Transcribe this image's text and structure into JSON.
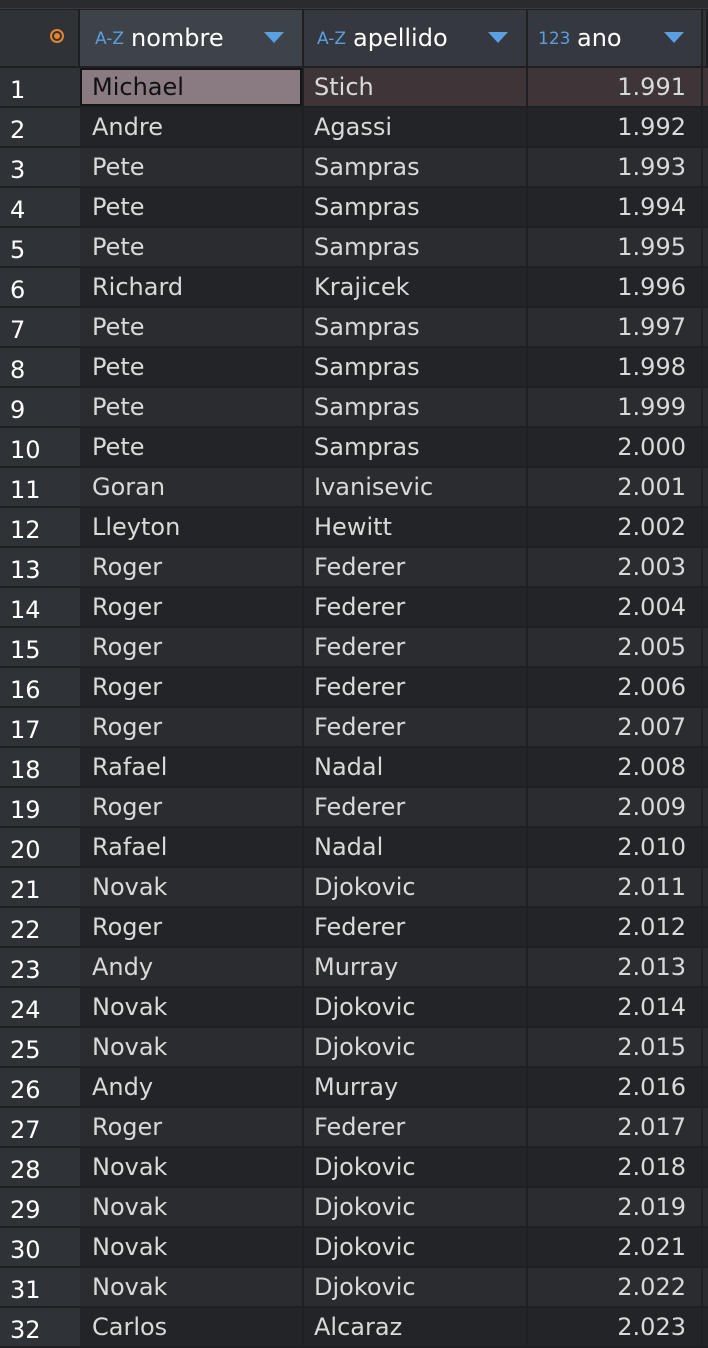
{
  "header": {
    "columns": [
      {
        "type_icon": "A-Z",
        "label": "nombre"
      },
      {
        "type_icon": "A-Z",
        "label": "apellido"
      },
      {
        "type_icon": "123",
        "label": "ano"
      }
    ]
  },
  "rows": [
    {
      "n": "1",
      "nombre": "Michael",
      "apellido": "Stich",
      "ano": "1.991"
    },
    {
      "n": "2",
      "nombre": "Andre",
      "apellido": "Agassi",
      "ano": "1.992"
    },
    {
      "n": "3",
      "nombre": "Pete",
      "apellido": "Sampras",
      "ano": "1.993"
    },
    {
      "n": "4",
      "nombre": "Pete",
      "apellido": "Sampras",
      "ano": "1.994"
    },
    {
      "n": "5",
      "nombre": "Pete",
      "apellido": "Sampras",
      "ano": "1.995"
    },
    {
      "n": "6",
      "nombre": "Richard",
      "apellido": "Krajicek",
      "ano": "1.996"
    },
    {
      "n": "7",
      "nombre": "Pete",
      "apellido": "Sampras",
      "ano": "1.997"
    },
    {
      "n": "8",
      "nombre": "Pete",
      "apellido": "Sampras",
      "ano": "1.998"
    },
    {
      "n": "9",
      "nombre": "Pete",
      "apellido": "Sampras",
      "ano": "1.999"
    },
    {
      "n": "10",
      "nombre": "Pete",
      "apellido": "Sampras",
      "ano": "2.000"
    },
    {
      "n": "11",
      "nombre": "Goran",
      "apellido": "Ivanisevic",
      "ano": "2.001"
    },
    {
      "n": "12",
      "nombre": "Lleyton",
      "apellido": "Hewitt",
      "ano": "2.002"
    },
    {
      "n": "13",
      "nombre": "Roger",
      "apellido": "Federer",
      "ano": "2.003"
    },
    {
      "n": "14",
      "nombre": "Roger",
      "apellido": "Federer",
      "ano": "2.004"
    },
    {
      "n": "15",
      "nombre": "Roger",
      "apellido": "Federer",
      "ano": "2.005"
    },
    {
      "n": "16",
      "nombre": "Roger",
      "apellido": "Federer",
      "ano": "2.006"
    },
    {
      "n": "17",
      "nombre": "Roger",
      "apellido": "Federer",
      "ano": "2.007"
    },
    {
      "n": "18",
      "nombre": "Rafael",
      "apellido": "Nadal",
      "ano": "2.008"
    },
    {
      "n": "19",
      "nombre": "Roger",
      "apellido": "Federer",
      "ano": "2.009"
    },
    {
      "n": "20",
      "nombre": "Rafael",
      "apellido": "Nadal",
      "ano": "2.010"
    },
    {
      "n": "21",
      "nombre": "Novak",
      "apellido": "Djokovic",
      "ano": "2.011"
    },
    {
      "n": "22",
      "nombre": "Roger",
      "apellido": "Federer",
      "ano": "2.012"
    },
    {
      "n": "23",
      "nombre": "Andy",
      "apellido": "Murray",
      "ano": "2.013"
    },
    {
      "n": "24",
      "nombre": "Novak",
      "apellido": "Djokovic",
      "ano": "2.014"
    },
    {
      "n": "25",
      "nombre": "Novak",
      "apellido": "Djokovic",
      "ano": "2.015"
    },
    {
      "n": "26",
      "nombre": "Andy",
      "apellido": "Murray",
      "ano": "2.016"
    },
    {
      "n": "27",
      "nombre": "Roger",
      "apellido": "Federer",
      "ano": "2.017"
    },
    {
      "n": "28",
      "nombre": "Novak",
      "apellido": "Djokovic",
      "ano": "2.018"
    },
    {
      "n": "29",
      "nombre": "Novak",
      "apellido": "Djokovic",
      "ano": "2.019"
    },
    {
      "n": "30",
      "nombre": "Novak",
      "apellido": "Djokovic",
      "ano": "2.021"
    },
    {
      "n": "31",
      "nombre": "Novak",
      "apellido": "Djokovic",
      "ano": "2.022"
    },
    {
      "n": "32",
      "nombre": "Carlos",
      "apellido": "Alcaraz",
      "ano": "2.023"
    }
  ],
  "selection": {
    "row": "1",
    "column": "nombre"
  },
  "colors": {
    "accent": "#5a9fe0",
    "record_icon": "#e7822f",
    "focused_cell": "#8a7b82"
  }
}
